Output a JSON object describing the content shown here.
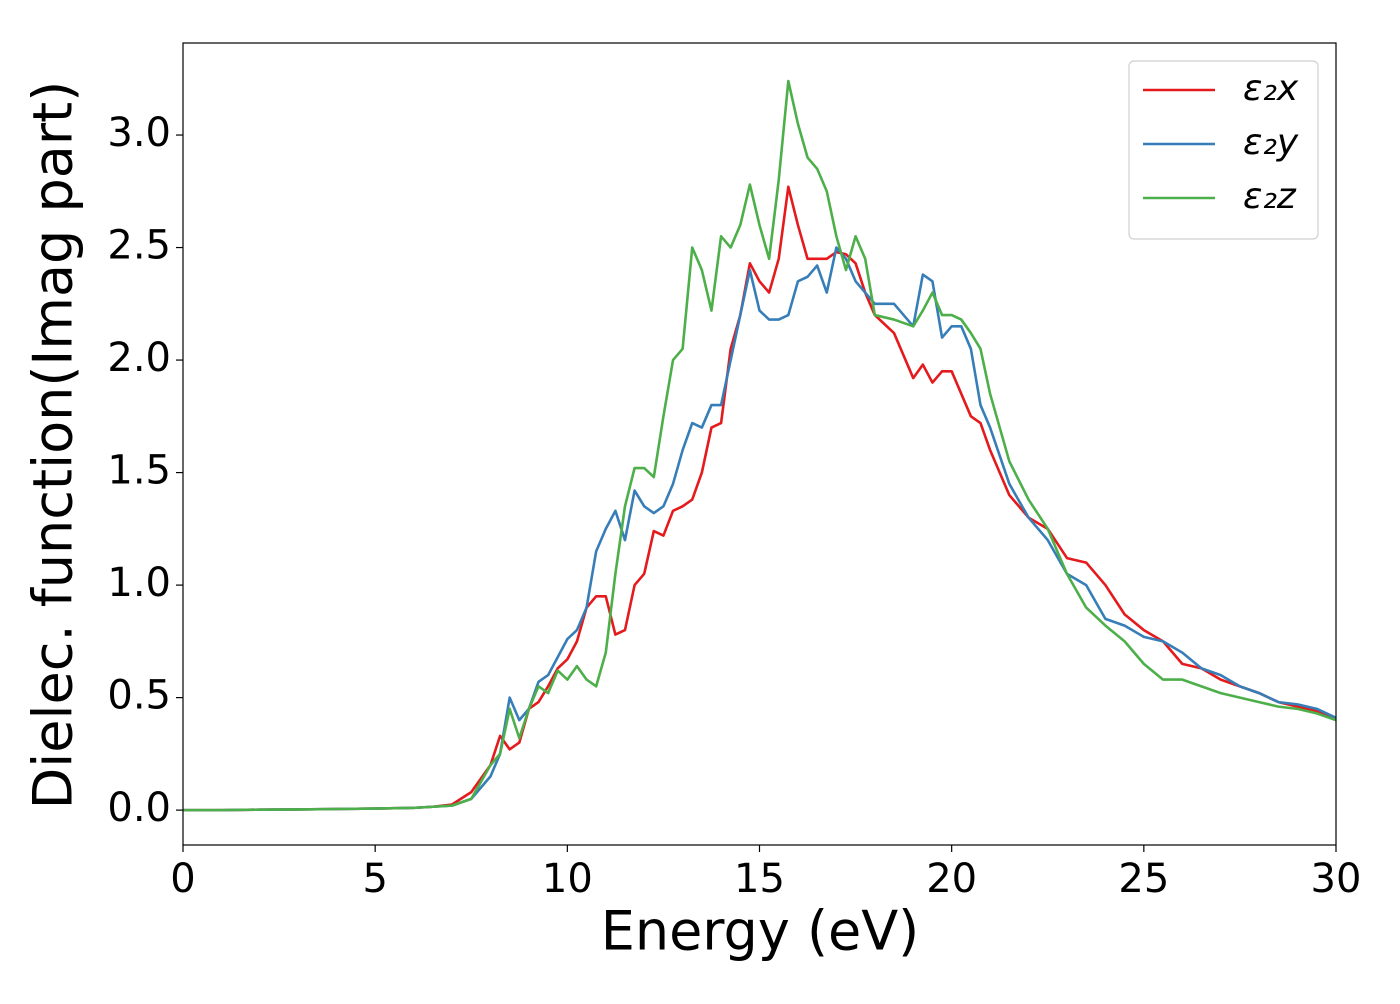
{
  "chart_data": {
    "type": "line",
    "xlabel": "Energy (eV)",
    "ylabel": "Dielec. function(Imag part)",
    "x": [
      0,
      1,
      2,
      3,
      4,
      5,
      6,
      6.5,
      7,
      7.5,
      8,
      8.25,
      8.5,
      8.75,
      9,
      9.25,
      9.5,
      9.75,
      10,
      10.25,
      10.5,
      10.75,
      11,
      11.25,
      11.5,
      11.75,
      12,
      12.25,
      12.5,
      12.75,
      13,
      13.25,
      13.5,
      13.75,
      14,
      14.25,
      14.5,
      14.75,
      15,
      15.25,
      15.5,
      15.75,
      16,
      16.25,
      16.5,
      16.75,
      17,
      17.25,
      17.5,
      17.75,
      18,
      18.5,
      19,
      19.25,
      19.5,
      19.75,
      20,
      20.25,
      20.5,
      20.75,
      21,
      21.5,
      22,
      22.5,
      23,
      23.5,
      24,
      24.5,
      25,
      25.5,
      26,
      26.5,
      27,
      27.5,
      28,
      28.5,
      29,
      29.5,
      30
    ],
    "series": [
      {
        "name": "ε₂x",
        "color": "#e41a1c",
        "values": [
          0,
          0,
          0.002,
          0.003,
          0.005,
          0.007,
          0.01,
          0.015,
          0.025,
          0.08,
          0.2,
          0.33,
          0.27,
          0.3,
          0.45,
          0.48,
          0.55,
          0.63,
          0.67,
          0.75,
          0.9,
          0.95,
          0.95,
          0.78,
          0.8,
          1.0,
          1.05,
          1.24,
          1.22,
          1.33,
          1.35,
          1.38,
          1.5,
          1.7,
          1.72,
          2.05,
          2.2,
          2.43,
          2.35,
          2.3,
          2.45,
          2.77,
          2.6,
          2.45,
          2.45,
          2.45,
          2.48,
          2.47,
          2.43,
          2.3,
          2.2,
          2.12,
          1.92,
          1.98,
          1.9,
          1.95,
          1.95,
          1.85,
          1.75,
          1.72,
          1.6,
          1.4,
          1.3,
          1.25,
          1.12,
          1.1,
          1.0,
          0.87,
          0.8,
          0.75,
          0.65,
          0.63,
          0.58,
          0.55,
          0.52,
          0.48,
          0.46,
          0.44,
          0.41
        ]
      },
      {
        "name": "ε₂y",
        "color": "#377eb8",
        "values": [
          0,
          0,
          0.002,
          0.003,
          0.005,
          0.007,
          0.01,
          0.015,
          0.02,
          0.05,
          0.15,
          0.25,
          0.5,
          0.4,
          0.45,
          0.57,
          0.6,
          0.68,
          0.76,
          0.8,
          0.9,
          1.15,
          1.25,
          1.33,
          1.2,
          1.42,
          1.35,
          1.32,
          1.35,
          1.45,
          1.6,
          1.72,
          1.7,
          1.8,
          1.8,
          2.0,
          2.2,
          2.4,
          2.22,
          2.18,
          2.18,
          2.2,
          2.35,
          2.37,
          2.42,
          2.3,
          2.5,
          2.45,
          2.35,
          2.3,
          2.25,
          2.25,
          2.15,
          2.38,
          2.35,
          2.1,
          2.15,
          2.15,
          2.05,
          1.8,
          1.7,
          1.45,
          1.3,
          1.2,
          1.05,
          1.0,
          0.85,
          0.82,
          0.77,
          0.75,
          0.7,
          0.63,
          0.6,
          0.55,
          0.52,
          0.48,
          0.47,
          0.45,
          0.41
        ]
      },
      {
        "name": "ε₂z",
        "color": "#4daf4a",
        "values": [
          0,
          0,
          0.002,
          0.003,
          0.005,
          0.007,
          0.01,
          0.015,
          0.02,
          0.05,
          0.2,
          0.25,
          0.45,
          0.32,
          0.45,
          0.55,
          0.52,
          0.62,
          0.58,
          0.64,
          0.58,
          0.55,
          0.7,
          1.05,
          1.35,
          1.52,
          1.52,
          1.48,
          1.75,
          2.0,
          2.05,
          2.5,
          2.4,
          2.22,
          2.55,
          2.5,
          2.6,
          2.78,
          2.6,
          2.45,
          2.8,
          3.24,
          3.05,
          2.9,
          2.85,
          2.75,
          2.55,
          2.4,
          2.55,
          2.45,
          2.2,
          2.18,
          2.15,
          2.22,
          2.3,
          2.2,
          2.2,
          2.18,
          2.12,
          2.05,
          1.85,
          1.55,
          1.38,
          1.25,
          1.05,
          0.9,
          0.82,
          0.75,
          0.65,
          0.58,
          0.58,
          0.55,
          0.52,
          0.5,
          0.48,
          0.46,
          0.45,
          0.43,
          0.4
        ]
      }
    ],
    "xlim": [
      0,
      30
    ],
    "xticks": [
      0,
      5,
      10,
      15,
      20,
      25,
      30
    ],
    "ylim": [
      -0.155,
      3.409
    ],
    "yticks": [
      {
        "value": 0,
        "label": "0.0"
      },
      0.5,
      {
        "value": 1,
        "label": "1.0"
      },
      1.5,
      {
        "value": 2,
        "label": "2.0"
      },
      2.5,
      {
        "value": 3,
        "label": "3.0"
      }
    ],
    "legend": "upper right",
    "grid": false
  }
}
